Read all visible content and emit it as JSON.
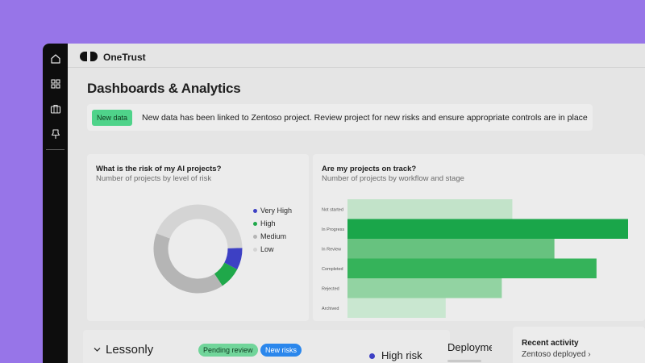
{
  "app": {
    "brand": "OneTrust"
  },
  "rail": {
    "items": [
      {
        "icon": "home-icon"
      },
      {
        "icon": "grid-icon"
      },
      {
        "icon": "briefcase-icon"
      },
      {
        "icon": "pin-icon"
      }
    ]
  },
  "page": {
    "title": "Dashboards & Analytics"
  },
  "alert": {
    "badge": "New data",
    "text": "New data has been linked to Zentoso project. Review project for new risks and ensure appropriate controls are in place"
  },
  "risk_card": {
    "title": "What is the risk of my AI projects?",
    "subtitle": "Number of projects by level of risk"
  },
  "track_card": {
    "title": "Are my projects on track?",
    "subtitle": "Number of projects by workflow and stage"
  },
  "chart_data": [
    {
      "type": "pie",
      "labels": [
        "Very High",
        "High",
        "Medium",
        "Low"
      ],
      "values": [
        8,
        8,
        40,
        44
      ],
      "colors": [
        "#3d40c4",
        "#1fa84a",
        "#b5b5b5",
        "#d4d4d4"
      ],
      "legend_position": "right"
    },
    {
      "type": "bar",
      "orientation": "horizontal",
      "categories": [
        "Not started",
        "In Progress",
        "In Review",
        "Completed",
        "Rejected",
        "Archived"
      ],
      "values": [
        47,
        80,
        59,
        71,
        44,
        28
      ],
      "colors": [
        "#c2e3c9",
        "#1aa64a",
        "#67c27f",
        "#35b35a",
        "#92d3a2",
        "#c9e7d0"
      ]
    }
  ],
  "project": {
    "name": "Lessonly",
    "status_badge": "Pending review",
    "risk_badge": "New risks",
    "risk_label": "High risk",
    "deploy_label": "Deployme"
  },
  "activity": {
    "title": "Recent activity",
    "link": "Zentoso deployed ›"
  }
}
